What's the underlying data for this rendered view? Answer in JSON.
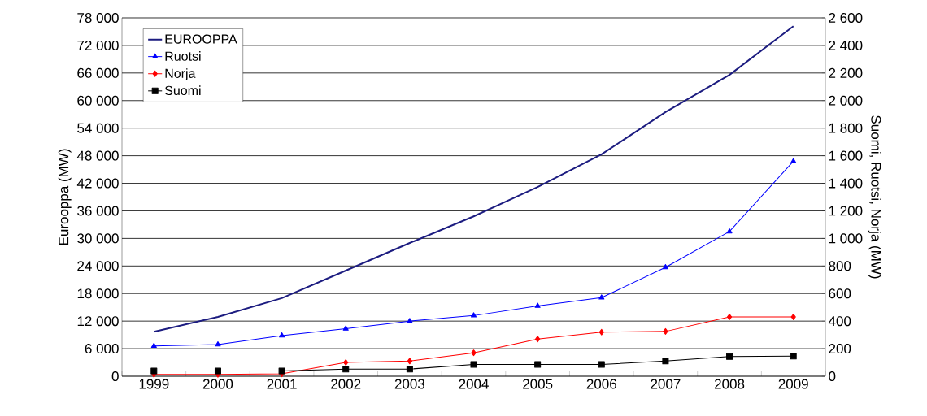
{
  "chart_data": {
    "type": "line",
    "ylabel": "Eurooppa (MW)",
    "y2label": "Suomi, Ruotsi, Norja (MW)",
    "categories": [
      "1999",
      "2000",
      "2001",
      "2002",
      "2003",
      "2004",
      "2005",
      "2006",
      "2007",
      "2008",
      "2009"
    ],
    "series": [
      {
        "name": "EUROOPPA",
        "color": "#1c1c80",
        "marker": "none",
        "values": [
          9700,
          12900,
          17000,
          23000,
          29000,
          34800,
          41200,
          48300,
          57500,
          65600,
          76200
        ]
      },
      {
        "name": "Ruotsi",
        "color": "#0000ff",
        "marker": "triangle",
        "axis": "y2",
        "values": [
          220,
          230,
          295,
          345,
          400,
          440,
          510,
          570,
          790,
          1050,
          1560
        ]
      },
      {
        "name": "Norja",
        "color": "#ff0000",
        "marker": "diamond",
        "axis": "y2",
        "values": [
          13,
          13,
          17,
          100,
          110,
          170,
          270,
          320,
          325,
          430,
          430
        ]
      },
      {
        "name": "Suomi",
        "color": "#000000",
        "marker": "square",
        "axis": "y2",
        "values": [
          38,
          38,
          38,
          52,
          52,
          86,
          86,
          86,
          110,
          143,
          146
        ]
      }
    ],
    "ylim": [
      0,
      78000
    ],
    "yticks": [
      0,
      {
        "value": 6000,
        "label": "6 000"
      },
      {
        "value": 12000,
        "label": "12 000"
      },
      {
        "value": 18000,
        "label": "18 000"
      },
      {
        "value": 24000,
        "label": "24 000"
      },
      {
        "value": 30000,
        "label": "30 000"
      },
      {
        "value": 36000,
        "label": "36 000"
      },
      {
        "value": 42000,
        "label": "42 000"
      },
      {
        "value": 48000,
        "label": "48 000"
      },
      {
        "value": 54000,
        "label": "54 000"
      },
      {
        "value": 60000,
        "label": "60 000"
      },
      {
        "value": 66000,
        "label": "66 000"
      },
      {
        "value": 72000,
        "label": "72 000"
      },
      {
        "value": 78000,
        "label": "78 000"
      }
    ],
    "y2lim": [
      0,
      2600
    ],
    "y2ticks": [
      0,
      200,
      400,
      600,
      800,
      {
        "value": 1000,
        "label": "1 000"
      },
      {
        "value": 1200,
        "label": "1 200"
      },
      {
        "value": 1400,
        "label": "1 400"
      },
      {
        "value": 1600,
        "label": "1 600"
      },
      {
        "value": 1800,
        "label": "1 800"
      },
      {
        "value": 2000,
        "label": "2 000"
      },
      {
        "value": 2200,
        "label": "2 200"
      },
      {
        "value": 2400,
        "label": "2 400"
      },
      {
        "value": 2600,
        "label": "2 600"
      }
    ],
    "grid": "y",
    "legend": "top left",
    "line_style": "solid"
  }
}
